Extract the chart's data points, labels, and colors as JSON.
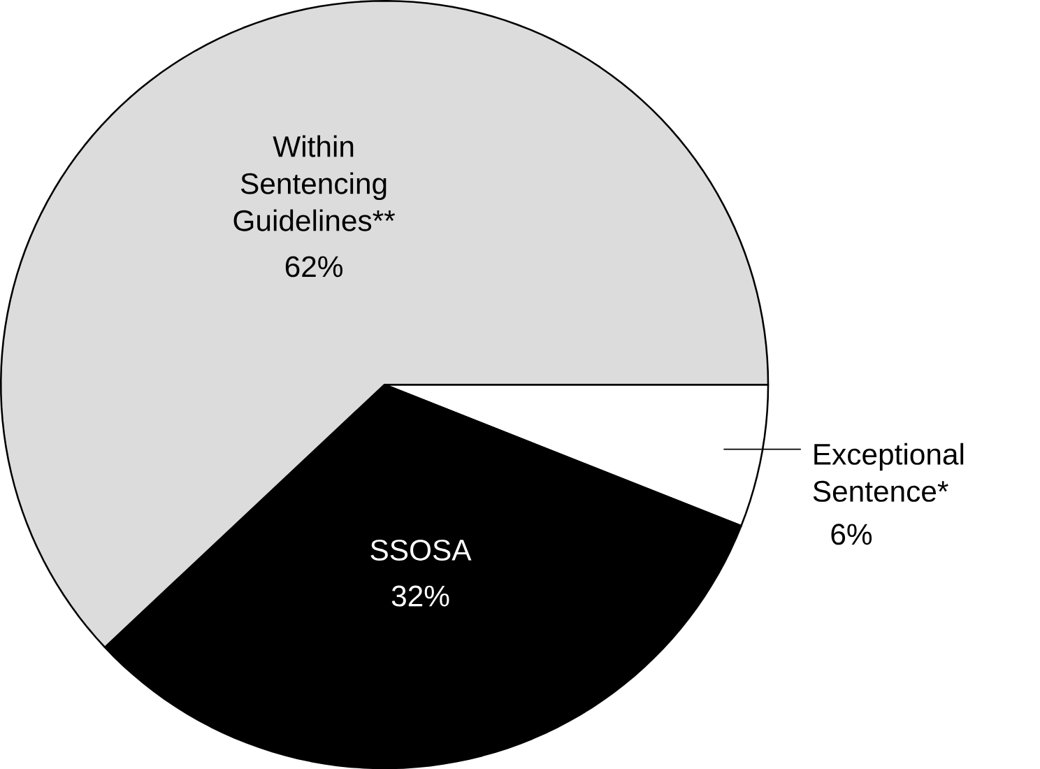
{
  "chart_data": {
    "type": "pie",
    "categories": [
      "Exceptional Sentence*",
      "SSOSA",
      "Within Sentencing Guidelines**"
    ],
    "values": [
      6,
      32,
      62
    ],
    "value_labels": [
      "6%",
      "32%",
      "62%"
    ],
    "colors": [
      "#ffffff",
      "#000000",
      "#dcdcdc"
    ]
  }
}
